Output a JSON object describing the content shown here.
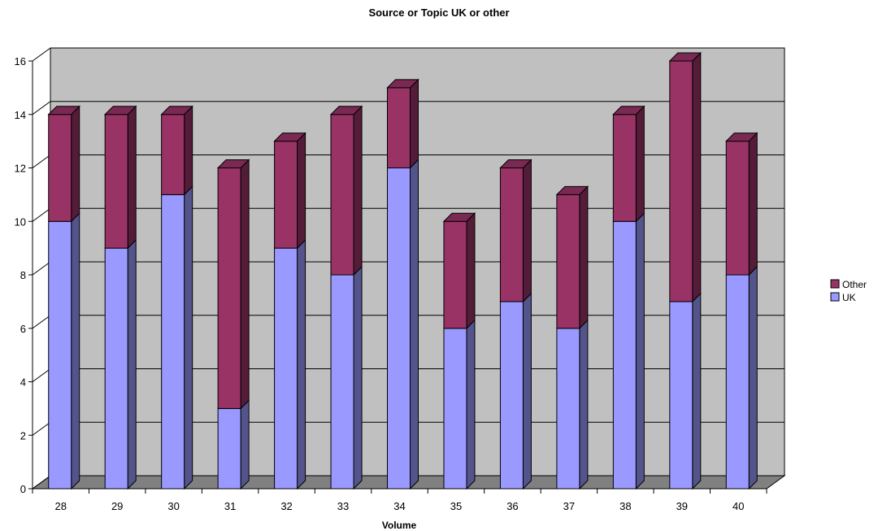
{
  "chart_data": {
    "type": "bar",
    "stacked": true,
    "three_d": true,
    "title": "Source or Topic UK or other",
    "xlabel": "Volume",
    "ylabel": "",
    "categories": [
      "28",
      "29",
      "30",
      "31",
      "32",
      "33",
      "34",
      "35",
      "36",
      "37",
      "38",
      "39",
      "40"
    ],
    "series": [
      {
        "name": "UK",
        "values": [
          10,
          9,
          11,
          3,
          9,
          8,
          12,
          6,
          7,
          6,
          10,
          7,
          8
        ],
        "color": "#9999ff"
      },
      {
        "name": "Other",
        "values": [
          4,
          5,
          3,
          9,
          4,
          6,
          3,
          4,
          5,
          5,
          4,
          9,
          5
        ],
        "color": "#993366"
      }
    ],
    "ylim": [
      0,
      16
    ],
    "yticks": [
      0,
      2,
      4,
      6,
      8,
      10,
      12,
      14,
      16
    ],
    "grid": true,
    "legend_position": "right",
    "legend_order": [
      "Other",
      "UK"
    ],
    "wall_color": "#c0c0c0",
    "floor_color": "#808080"
  }
}
